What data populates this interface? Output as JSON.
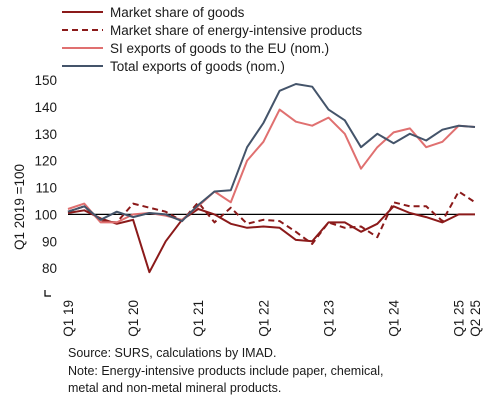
{
  "chart_data": {
    "type": "line",
    "title": "",
    "ylabel": "Q1 2019 =100",
    "xlabel": "",
    "ylim": [
      70,
      150
    ],
    "yticks": [
      80,
      90,
      100,
      110,
      120,
      130,
      140,
      150
    ],
    "x_tick_labels": [
      "Q1 19",
      "Q1 20",
      "Q1 21",
      "Q1 22",
      "Q1 23",
      "Q1 24",
      "Q1 25",
      "Q2 25"
    ],
    "x_tick_index": [
      0,
      4,
      8,
      12,
      16,
      20,
      24,
      25
    ],
    "reference_line": 100,
    "legend_position": "top-left",
    "series": [
      {
        "name": "Market share of goods",
        "style": "solid",
        "color": "#8b1a1a",
        "values": [
          100.5,
          101.5,
          98.5,
          96.5,
          98.0,
          78.5,
          90.0,
          98.0,
          102.0,
          100.0,
          96.5,
          95.0,
          95.5,
          95.0,
          90.5,
          90.0,
          97.0,
          97.0,
          93.5,
          96.5,
          103.0,
          100.5,
          99.0,
          97.0,
          100.0,
          100.0
        ]
      },
      {
        "name": "Market share of energy-intensive products",
        "style": "dashed",
        "color": "#8b1a1a",
        "values": [
          101.0,
          103.0,
          97.5,
          97.0,
          104.0,
          102.5,
          101.0,
          97.5,
          104.5,
          97.0,
          102.5,
          96.5,
          98.0,
          97.5,
          93.5,
          89.0,
          97.0,
          95.0,
          95.5,
          91.5,
          104.5,
          103.0,
          103.0,
          97.5,
          108.5,
          104.5
        ]
      },
      {
        "name": "SI exports of goods to the EU (nom.)",
        "style": "solid",
        "color": "#e07070",
        "values": [
          102.0,
          104.0,
          97.0,
          97.0,
          100.0,
          100.5,
          99.5,
          98.0,
          103.0,
          108.5,
          104.5,
          120.0,
          127.0,
          139.0,
          134.5,
          133.0,
          136.0,
          130.0,
          117.0,
          125.0,
          130.5,
          132.0,
          125.0,
          127.0,
          133.0,
          132.5
        ]
      },
      {
        "name": "Total exports of goods (nom.)",
        "style": "solid",
        "color": "#44546a",
        "values": [
          101.0,
          103.0,
          98.0,
          101.0,
          99.0,
          100.5,
          100.0,
          97.5,
          103.5,
          108.5,
          109.0,
          125.0,
          134.0,
          146.0,
          148.5,
          147.5,
          139.0,
          135.0,
          125.0,
          130.0,
          126.5,
          130.0,
          127.5,
          131.5,
          133.0,
          132.5
        ]
      }
    ]
  },
  "notes": {
    "source": "Source: SURS, calculations by IMAD.",
    "note_line1": "Note: Energy-intensive products include paper, chemical,",
    "note_line2": "metal and non-metal mineral products."
  }
}
